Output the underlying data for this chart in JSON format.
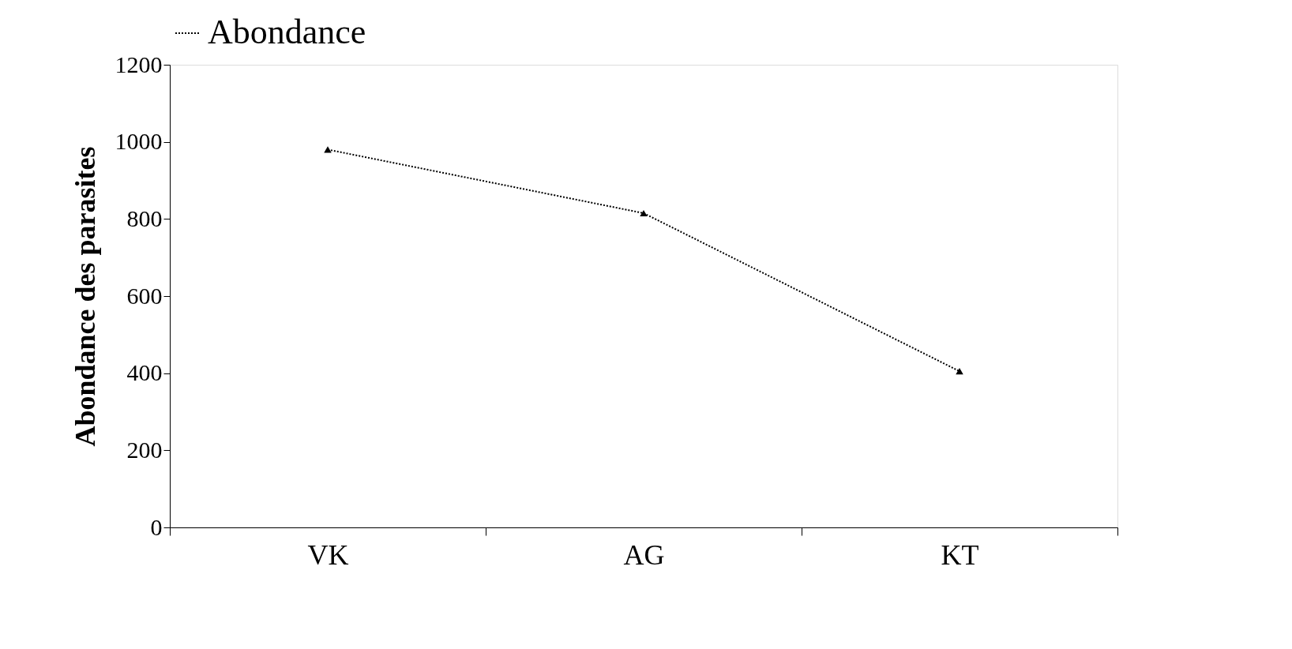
{
  "chart_data": {
    "type": "line",
    "ylabel": "Abondance des parasites",
    "categories": [
      "VK",
      "AG",
      "KT"
    ],
    "series": [
      {
        "name": "Abondance",
        "color": "#000000",
        "values": [
          980,
          815,
          405
        ]
      }
    ],
    "ylim": [
      0,
      1200
    ],
    "yticks": [
      0,
      200,
      400,
      600,
      800,
      1000,
      1200
    ],
    "marker": "triangle",
    "line_style": "dotted",
    "legend": "top",
    "grid": false
  }
}
